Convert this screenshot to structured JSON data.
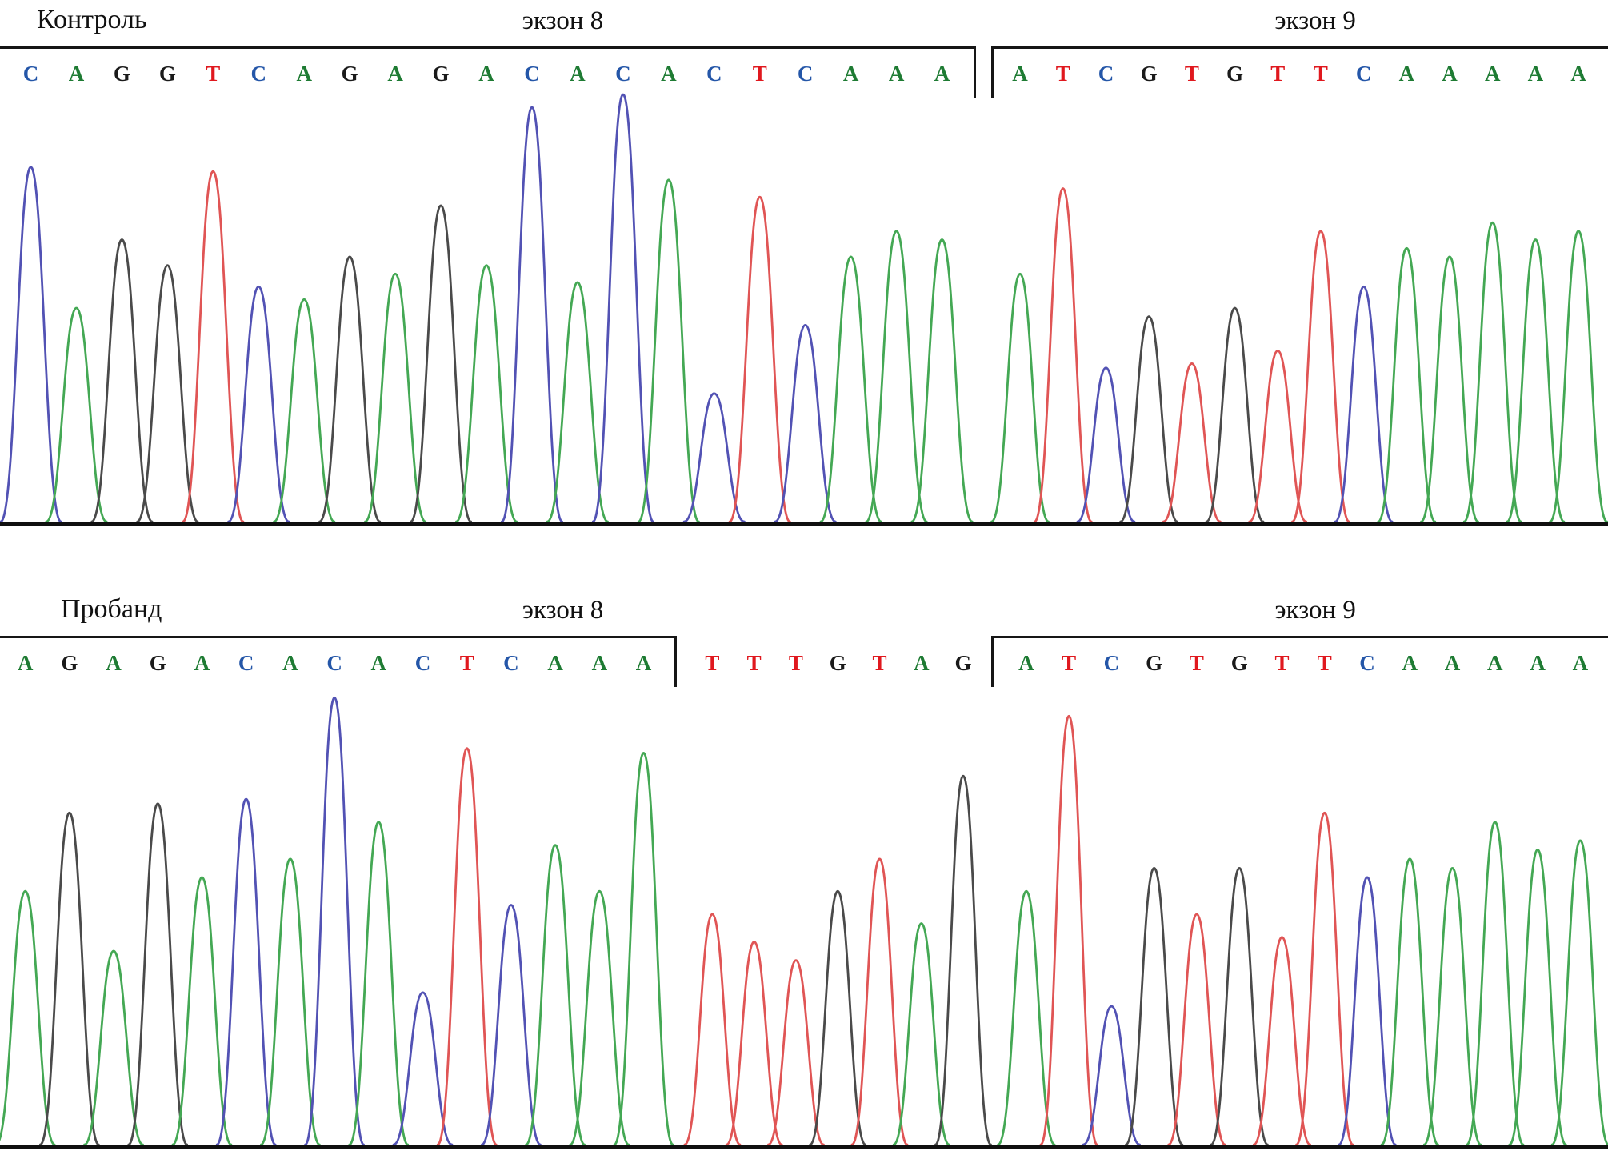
{
  "figure": {
    "background": "#ffffff"
  },
  "chart_data": {
    "type": "line",
    "subtype": "sanger-sequencing-chromatogram",
    "base_letter_colors": {
      "A": "#1e7b33",
      "C": "#2456a8",
      "G": "#1a1a1a",
      "T": "#e0181e"
    },
    "base_trace_colors": {
      "A": "#44a854",
      "C": "#5252b4",
      "G": "#4a4a4a",
      "T": "#e05555"
    },
    "panels": [
      {
        "title": "Контроль",
        "exon_labels": [
          "экзон 8",
          "экзон 9"
        ],
        "brackets": [
          {
            "x1": 0.0,
            "x2": 0.606,
            "tick": "right",
            "label_center": 0.35
          },
          {
            "x1": 0.617,
            "x2": 1.0,
            "tick": "left",
            "label_center": 0.818
          }
        ],
        "segments": [
          {
            "name": "exon8",
            "x1": 0.005,
            "x2": 0.6,
            "bases": [
              {
                "b": "C",
                "h": 0.83
              },
              {
                "b": "A",
                "h": 0.5
              },
              {
                "b": "G",
                "h": 0.66
              },
              {
                "b": "G",
                "h": 0.6
              },
              {
                "b": "T",
                "h": 0.82
              },
              {
                "b": "C",
                "h": 0.55
              },
              {
                "b": "A",
                "h": 0.52
              },
              {
                "b": "G",
                "h": 0.62
              },
              {
                "b": "A",
                "h": 0.58
              },
              {
                "b": "G",
                "h": 0.74
              },
              {
                "b": "A",
                "h": 0.6
              },
              {
                "b": "C",
                "h": 0.97
              },
              {
                "b": "A",
                "h": 0.56
              },
              {
                "b": "C",
                "h": 1.0
              },
              {
                "b": "A",
                "h": 0.8
              },
              {
                "b": "C",
                "h": 0.3
              },
              {
                "b": "T",
                "h": 0.76
              },
              {
                "b": "C",
                "h": 0.46
              },
              {
                "b": "A",
                "h": 0.62
              },
              {
                "b": "A",
                "h": 0.68
              },
              {
                "b": "A",
                "h": 0.66
              }
            ]
          },
          {
            "name": "exon9",
            "x1": 0.621,
            "x2": 0.995,
            "bases": [
              {
                "b": "A",
                "h": 0.58
              },
              {
                "b": "T",
                "h": 0.78
              },
              {
                "b": "C",
                "h": 0.36
              },
              {
                "b": "G",
                "h": 0.48
              },
              {
                "b": "T",
                "h": 0.37
              },
              {
                "b": "G",
                "h": 0.5
              },
              {
                "b": "T",
                "h": 0.4
              },
              {
                "b": "T",
                "h": 0.68
              },
              {
                "b": "C",
                "h": 0.55
              },
              {
                "b": "A",
                "h": 0.64
              },
              {
                "b": "A",
                "h": 0.62
              },
              {
                "b": "A",
                "h": 0.7
              },
              {
                "b": "A",
                "h": 0.66
              },
              {
                "b": "A",
                "h": 0.68
              }
            ]
          }
        ]
      },
      {
        "title": "Пробанд",
        "exon_labels": [
          "экзон 8",
          "экзон 9"
        ],
        "brackets": [
          {
            "x1": 0.0,
            "x2": 0.42,
            "tick": "right",
            "label_center": 0.35
          },
          {
            "x1": 0.617,
            "x2": 1.0,
            "tick": "left",
            "label_center": 0.818
          }
        ],
        "segments": [
          {
            "name": "exon8",
            "x1": 0.002,
            "x2": 0.414,
            "bases": [
              {
                "b": "A",
                "h": 0.55
              },
              {
                "b": "G",
                "h": 0.72
              },
              {
                "b": "A",
                "h": 0.42
              },
              {
                "b": "G",
                "h": 0.74
              },
              {
                "b": "A",
                "h": 0.58
              },
              {
                "b": "C",
                "h": 0.75
              },
              {
                "b": "A",
                "h": 0.62
              },
              {
                "b": "C",
                "h": 0.97
              },
              {
                "b": "A",
                "h": 0.7
              },
              {
                "b": "C",
                "h": 0.33
              },
              {
                "b": "T",
                "h": 0.86
              },
              {
                "b": "C",
                "h": 0.52
              },
              {
                "b": "A",
                "h": 0.65
              },
              {
                "b": "A",
                "h": 0.55
              },
              {
                "b": "A",
                "h": 0.85
              }
            ]
          },
          {
            "name": "intron",
            "x1": 0.43,
            "x2": 0.612,
            "bases": [
              {
                "b": "T",
                "h": 0.5
              },
              {
                "b": "T",
                "h": 0.44
              },
              {
                "b": "T",
                "h": 0.4
              },
              {
                "b": "G",
                "h": 0.55
              },
              {
                "b": "T",
                "h": 0.62
              },
              {
                "b": "A",
                "h": 0.48
              },
              {
                "b": "G",
                "h": 0.8
              }
            ]
          },
          {
            "name": "exon9",
            "x1": 0.625,
            "x2": 0.996,
            "bases": [
              {
                "b": "A",
                "h": 0.55
              },
              {
                "b": "T",
                "h": 0.93
              },
              {
                "b": "C",
                "h": 0.3
              },
              {
                "b": "G",
                "h": 0.6
              },
              {
                "b": "T",
                "h": 0.5
              },
              {
                "b": "G",
                "h": 0.6
              },
              {
                "b": "T",
                "h": 0.45
              },
              {
                "b": "T",
                "h": 0.72
              },
              {
                "b": "C",
                "h": 0.58
              },
              {
                "b": "A",
                "h": 0.62
              },
              {
                "b": "A",
                "h": 0.6
              },
              {
                "b": "A",
                "h": 0.7
              },
              {
                "b": "A",
                "h": 0.64
              },
              {
                "b": "A",
                "h": 0.66
              }
            ]
          }
        ]
      }
    ]
  }
}
